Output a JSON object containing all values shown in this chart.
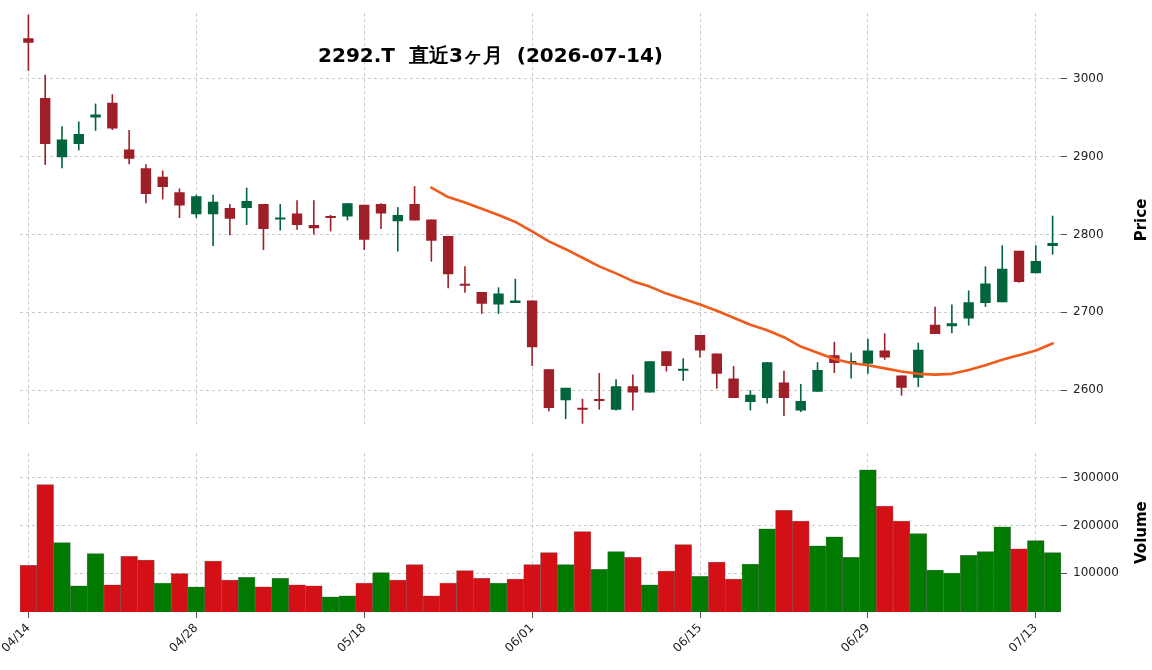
{
  "chart_data": [
    {
      "type": "candlestick",
      "title": "2292.T  直近3ヶ月  (2026-07-14)",
      "ylabel": "Price",
      "tick_labels": "y",
      "grid": true,
      "categories": [
        null,
        null,
        null,
        null,
        null,
        null,
        null,
        null,
        null,
        null,
        null,
        null,
        null,
        null,
        null,
        null,
        null,
        null,
        null,
        null,
        null,
        null,
        null,
        null,
        null,
        null,
        null,
        null,
        null,
        null,
        null,
        null,
        null,
        null,
        null,
        null,
        null,
        null,
        null,
        null,
        null,
        null,
        null,
        null,
        null,
        null,
        null,
        null,
        null,
        null,
        null,
        null,
        null,
        null,
        null,
        null,
        null,
        null,
        null,
        null,
        null,
        null
      ],
      "ylim": [
        2553,
        3084
      ],
      "yticks": [
        2600,
        2700,
        2800,
        2900,
        3000
      ],
      "series": [
        {
          "type": "candlestick",
          "ohlc": [
            [
              3052,
              3082,
              3010,
              3046
            ],
            [
              2975,
              3005,
              2889,
              2916
            ],
            [
              2899,
              2939,
              2885,
              2922
            ],
            [
              2916,
              2945,
              2908,
              2929
            ],
            [
              2950,
              2968,
              2933,
              2954
            ],
            [
              2969,
              2980,
              2934,
              2936
            ],
            [
              2909,
              2934,
              2890,
              2897
            ],
            [
              2885,
              2890,
              2840,
              2852
            ],
            [
              2874,
              2882,
              2845,
              2861
            ],
            [
              2854,
              2859,
              2821,
              2837
            ],
            [
              2826,
              2851,
              2821,
              2849
            ],
            [
              2826,
              2851,
              2785,
              2842
            ],
            [
              2834,
              2839,
              2799,
              2820
            ],
            [
              2834,
              2860,
              2812,
              2843
            ],
            [
              2839,
              2839,
              2780,
              2807
            ],
            [
              2819,
              2839,
              2805,
              2821
            ],
            [
              2827,
              2844,
              2806,
              2812
            ],
            [
              2812,
              2844,
              2800,
              2808
            ],
            [
              2822,
              2825,
              2804,
              2821
            ],
            [
              2823,
              2840,
              2818,
              2840
            ],
            [
              2838,
              2838,
              2780,
              2793
            ],
            [
              2839,
              2840,
              2807,
              2827
            ],
            [
              2817,
              2835,
              2778,
              2825
            ],
            [
              2839,
              2862,
              2818,
              2818
            ],
            [
              2819,
              2819,
              2765,
              2792
            ],
            [
              2798,
              2798,
              2731,
              2749
            ],
            [
              2736,
              2759,
              2725,
              2734
            ],
            [
              2726,
              2726,
              2698,
              2711
            ],
            [
              2710,
              2732,
              2698,
              2724
            ],
            [
              2712,
              2743,
              2712,
              2715
            ],
            [
              2715,
              2715,
              2631,
              2655
            ],
            [
              2627,
              2627,
              2573,
              2577
            ],
            [
              2587,
              2603,
              2563,
              2603
            ],
            [
              2577,
              2589,
              2557,
              2575
            ],
            [
              2587,
              2622,
              2575,
              2586
            ],
            [
              2575,
              2614,
              2574,
              2605
            ],
            [
              2605,
              2620,
              2574,
              2597
            ],
            [
              2597,
              2637,
              2597,
              2637
            ],
            [
              2650,
              2650,
              2624,
              2631
            ],
            [
              2625,
              2641,
              2612,
              2626
            ],
            [
              2671,
              2671,
              2642,
              2651
            ],
            [
              2647,
              2647,
              2602,
              2621
            ],
            [
              2615,
              2631,
              2590,
              2590
            ],
            [
              2585,
              2600,
              2574,
              2594
            ],
            [
              2590,
              2636,
              2583,
              2636
            ],
            [
              2610,
              2625,
              2567,
              2590
            ],
            [
              2574,
              2608,
              2572,
              2586
            ],
            [
              2598,
              2636,
              2598,
              2626
            ],
            [
              2645,
              2662,
              2622,
              2635
            ],
            [
              2635,
              2648,
              2615,
              2637
            ],
            [
              2634,
              2666,
              2621,
              2651
            ],
            [
              2651,
              2673,
              2639,
              2642
            ],
            [
              2619,
              2619,
              2593,
              2603
            ],
            [
              2616,
              2661,
              2604,
              2652
            ],
            [
              2684,
              2707,
              2672,
              2672
            ],
            [
              2682,
              2710,
              2673,
              2686
            ],
            [
              2692,
              2728,
              2683,
              2713
            ],
            [
              2712,
              2759,
              2707,
              2737
            ],
            [
              2713,
              2786,
              2713,
              2756
            ],
            [
              2779,
              2779,
              2738,
              2739
            ],
            [
              2750,
              2786,
              2750,
              2766
            ],
            [
              2785,
              2824,
              2774,
              2789
            ]
          ],
          "colors": [
            "#9e1f28",
            "#9e1f28",
            "#00643c",
            "#00643c",
            "#00643c",
            "#9e1f28",
            "#9e1f28",
            "#9e1f28",
            "#9e1f28",
            "#9e1f28",
            "#00643c",
            "#00643c",
            "#9e1f28",
            "#00643c",
            "#9e1f28",
            "#00643c",
            "#9e1f28",
            "#9e1f28",
            "#9e1f28",
            "#00643c",
            "#9e1f28",
            "#9e1f28",
            "#00643c",
            "#9e1f28",
            "#9e1f28",
            "#9e1f28",
            "#9e1f28",
            "#9e1f28",
            "#00643c",
            "#00643c",
            "#9e1f28",
            "#9e1f28",
            "#00643c",
            "#9e1f28",
            "#9e1f28",
            "#00643c",
            "#9e1f28",
            "#00643c",
            "#9e1f28",
            "#00643c",
            "#9e1f28",
            "#9e1f28",
            "#9e1f28",
            "#00643c",
            "#00643c",
            "#9e1f28",
            "#00643c",
            "#00643c",
            "#9e1f28",
            "#00643c",
            "#00643c",
            "#9e1f28",
            "#9e1f28",
            "#00643c",
            "#9e1f28",
            "#00643c",
            "#00643c",
            "#00643c",
            "#00643c",
            "#9e1f28",
            "#00643c",
            "#00643c"
          ]
        },
        {
          "type": "line",
          "color": "#f05a1a",
          "values": [
            null,
            null,
            null,
            null,
            null,
            null,
            null,
            null,
            null,
            null,
            null,
            null,
            null,
            null,
            null,
            null,
            null,
            null,
            null,
            null,
            null,
            null,
            null,
            null,
            2860,
            2848,
            2841,
            2833,
            2825,
            2816,
            2804,
            2791,
            2781,
            2770,
            2759,
            2750,
            2740,
            2733,
            2724,
            2717,
            2710,
            2702,
            2693,
            2684,
            2677,
            2668,
            2656,
            2648,
            2640,
            2635,
            2632,
            2628,
            2624,
            2621,
            2620,
            2621,
            2626,
            2632,
            2639,
            2645,
            2651,
            2660
          ]
        }
      ]
    },
    {
      "type": "bar",
      "ylabel": "Volume",
      "grid": true,
      "categories": [
        "04/14",
        null,
        null,
        null,
        null,
        null,
        null,
        null,
        null,
        null,
        "04/28",
        null,
        null,
        null,
        null,
        null,
        null,
        null,
        null,
        null,
        "05/18",
        null,
        null,
        null,
        null,
        null,
        null,
        null,
        null,
        null,
        "06/01",
        null,
        null,
        null,
        null,
        null,
        null,
        null,
        null,
        null,
        "06/15",
        null,
        null,
        null,
        null,
        null,
        null,
        null,
        null,
        null,
        "06/29",
        null,
        null,
        null,
        null,
        null,
        null,
        null,
        null,
        null,
        "07/13",
        null
      ],
      "ylim": [
        18000,
        352000
      ],
      "yticks": [
        100000,
        200000,
        300000
      ],
      "values": [
        116000,
        286000,
        164000,
        73000,
        141000,
        75000,
        135000,
        127000,
        79000,
        99000,
        71000,
        125000,
        85000,
        91000,
        71000,
        89000,
        75000,
        73000,
        50000,
        52000,
        79000,
        101000,
        85000,
        118000,
        52000,
        79000,
        105000,
        89000,
        79000,
        87000,
        118000,
        143000,
        118000,
        187000,
        108000,
        145000,
        133000,
        75000,
        104000,
        160000,
        93000,
        123000,
        87000,
        119000,
        193000,
        232000,
        209000,
        157000,
        176000,
        133000,
        317000,
        241000,
        209000,
        183000,
        106000,
        100000,
        137000,
        145000,
        197000,
        151000,
        168000,
        143000
      ],
      "colors": [
        "#d41017",
        "#d41017",
        "#007a00",
        "#007a00",
        "#007a00",
        "#d41017",
        "#d41017",
        "#d41017",
        "#007a00",
        "#d41017",
        "#007a00",
        "#d41017",
        "#d41017",
        "#007a00",
        "#d41017",
        "#007a00",
        "#d41017",
        "#d41017",
        "#007a00",
        "#007a00",
        "#d41017",
        "#007a00",
        "#d41017",
        "#d41017",
        "#d41017",
        "#d41017",
        "#d41017",
        "#d41017",
        "#007a00",
        "#d41017",
        "#d41017",
        "#d41017",
        "#007a00",
        "#d41017",
        "#007a00",
        "#007a00",
        "#d41017",
        "#007a00",
        "#d41017",
        "#d41017",
        "#007a00",
        "#d41017",
        "#d41017",
        "#007a00",
        "#007a00",
        "#d41017",
        "#d41017",
        "#007a00",
        "#007a00",
        "#007a00",
        "#007a00",
        "#d41017",
        "#d41017",
        "#007a00",
        "#007a00",
        "#007a00",
        "#007a00",
        "#007a00",
        "#007a00",
        "#d41017",
        "#007a00",
        "#007a00"
      ]
    }
  ]
}
